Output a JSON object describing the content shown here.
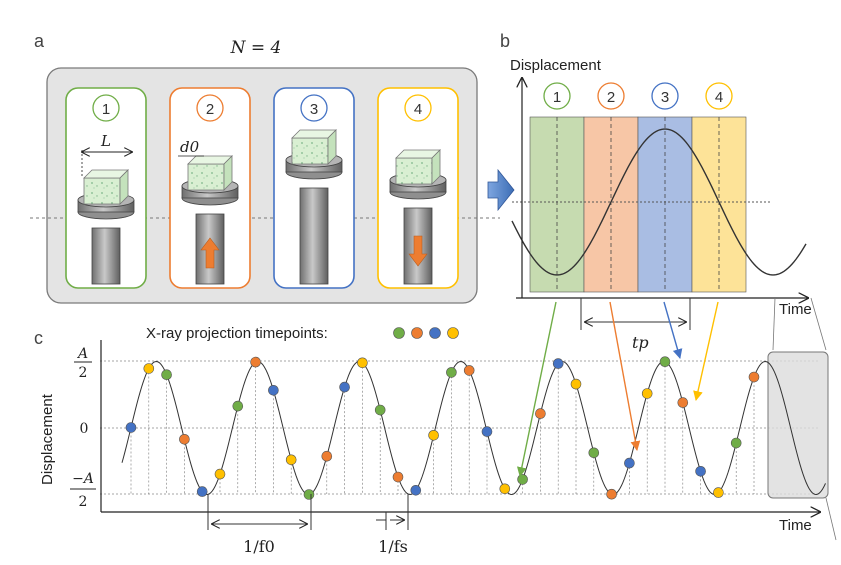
{
  "panels": {
    "a": {
      "letter": "a",
      "n_label": "N = 4",
      "samples": [
        {
          "number": "1",
          "color": "#70ad47",
          "dimension_label": "L",
          "arrow": "none"
        },
        {
          "number": "2",
          "color": "#ed7d31",
          "dimension_label": "d0",
          "arrow": "up"
        },
        {
          "number": "3",
          "color": "#4472c4",
          "dimension_label": "",
          "arrow": "none"
        },
        {
          "number": "4",
          "color": "#ffc000",
          "dimension_label": "",
          "arrow": "down"
        }
      ]
    },
    "b": {
      "letter": "b",
      "ylabel": "Displacement",
      "xlabel": "Time",
      "period_label": "tp",
      "bands": [
        {
          "number": "1",
          "color": "#70ad47",
          "fill": "#c6dbb0"
        },
        {
          "number": "2",
          "color": "#ed7d31",
          "fill": "#f7c6a6"
        },
        {
          "number": "3",
          "color": "#4472c4",
          "fill": "#a9bde3"
        },
        {
          "number": "4",
          "color": "#ffc000",
          "fill": "#fde398"
        }
      ]
    },
    "c": {
      "letter": "c",
      "legend_label": "X-ray projection timepoints:",
      "ylabel": "Displacement",
      "xlabel": "Time",
      "ytick_top_num": "A",
      "ytick_top_den": "2",
      "ytick_mid": "0",
      "ytick_bot_num": "−A",
      "ytick_bot_den": "2",
      "freq0_label": "1/f0",
      "freqs_label": "1/fs"
    }
  },
  "colors": {
    "green": "#70ad47",
    "orange": "#ed7d31",
    "blue": "#4472c4",
    "yellow": "#ffc000"
  },
  "chart_data": {
    "type": "scatter",
    "title": "",
    "xlabel": "Time",
    "ylabel": "Displacement",
    "ylim": [
      -0.5,
      0.5
    ],
    "signal": "sinusoid",
    "amplitude": 0.5,
    "cycles_shown": 7,
    "phase_colors": [
      "#70ad47",
      "#ed7d31",
      "#4472c4",
      "#ffc000"
    ],
    "note_phase_order": [
      "1",
      "2",
      "3",
      "4"
    ]
  }
}
